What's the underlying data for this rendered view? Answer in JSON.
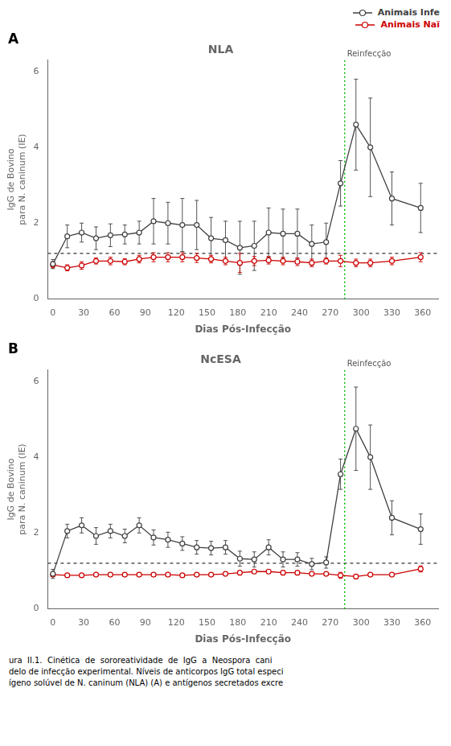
{
  "chart_data": [
    {
      "type": "line",
      "title": "NLA",
      "panel_label": "A",
      "xlabel": "Dias Pós-Infecção",
      "ylabel": "IgG de Bovino\npara N. caninum (IE)",
      "xlim": [
        -5,
        375
      ],
      "xticks": [
        0,
        30,
        60,
        90,
        120,
        150,
        180,
        210,
        240,
        270,
        300,
        330,
        360
      ],
      "ylim": [
        0,
        6.3
      ],
      "yticks": [
        0,
        2,
        4,
        6
      ],
      "grid": false,
      "legend": "upper right",
      "series": [
        {
          "name": "Animais Infe",
          "color": "#404040",
          "marker": "circle",
          "line_style": "solid",
          "x": [
            0,
            14,
            28,
            42,
            56,
            70,
            84,
            98,
            112,
            126,
            140,
            154,
            168,
            182,
            196,
            210,
            224,
            238,
            252,
            266,
            280,
            295,
            309,
            330,
            358
          ],
          "values": [
            0.92,
            1.65,
            1.75,
            1.6,
            1.68,
            1.7,
            1.75,
            2.05,
            2.0,
            1.95,
            1.95,
            1.6,
            1.55,
            1.35,
            1.4,
            1.75,
            1.72,
            1.72,
            1.45,
            1.5,
            3.05,
            4.6,
            4.0,
            2.65,
            2.4
          ],
          "errors": [
            0.12,
            0.3,
            0.25,
            0.3,
            0.3,
            0.25,
            0.3,
            0.6,
            0.55,
            0.7,
            0.65,
            0.55,
            0.5,
            0.7,
            0.65,
            0.65,
            0.65,
            0.65,
            0.5,
            0.5,
            0.6,
            1.2,
            1.3,
            0.7,
            0.65
          ]
        },
        {
          "name": "Animais Naï",
          "color": "#cc0000",
          "marker": "circle",
          "line_style": "solid",
          "x": [
            0,
            14,
            28,
            42,
            56,
            70,
            84,
            98,
            112,
            126,
            140,
            154,
            168,
            182,
            196,
            210,
            224,
            238,
            252,
            266,
            280,
            295,
            309,
            330,
            358
          ],
          "values": [
            0.9,
            0.82,
            0.88,
            1.0,
            1.0,
            0.98,
            1.05,
            1.1,
            1.1,
            1.1,
            1.08,
            1.05,
            1.0,
            0.95,
            1.0,
            1.02,
            1.0,
            0.98,
            0.95,
            1.0,
            1.0,
            0.95,
            0.95,
            1.0,
            1.1
          ],
          "errors": [
            0.08,
            0.08,
            0.1,
            0.08,
            0.1,
            0.08,
            0.1,
            0.12,
            0.12,
            0.12,
            0.12,
            0.1,
            0.1,
            0.25,
            0.12,
            0.1,
            0.1,
            0.1,
            0.1,
            0.08,
            0.15,
            0.1,
            0.1,
            0.1,
            0.12
          ]
        }
      ],
      "annotations": [
        {
          "type": "hline",
          "y": 1.2,
          "color": "#000000",
          "line_style": "dashed"
        },
        {
          "type": "vline",
          "x": 284,
          "label": "Reinfecção",
          "color": "#00bb00",
          "line_style": "dotted"
        }
      ]
    },
    {
      "type": "line",
      "title": "NcESA",
      "panel_label": "B",
      "xlabel": "Dias Pós-Infecção",
      "ylabel": "IgG de Bovino\npara N. caninum (IE)",
      "xlim": [
        -5,
        375
      ],
      "xticks": [
        0,
        30,
        60,
        90,
        120,
        150,
        180,
        210,
        240,
        270,
        300,
        330,
        360
      ],
      "ylim": [
        0,
        6.3
      ],
      "yticks": [
        0,
        2,
        4,
        6
      ],
      "grid": false,
      "series": [
        {
          "name": "Animais Infe",
          "color": "#404040",
          "marker": "circle",
          "line_style": "solid",
          "x": [
            0,
            14,
            28,
            42,
            56,
            70,
            84,
            98,
            112,
            126,
            140,
            154,
            168,
            182,
            196,
            210,
            224,
            238,
            252,
            266,
            280,
            295,
            309,
            330,
            358
          ],
          "values": [
            0.92,
            2.05,
            2.2,
            1.92,
            2.05,
            1.92,
            2.2,
            1.88,
            1.82,
            1.72,
            1.62,
            1.6,
            1.62,
            1.32,
            1.3,
            1.62,
            1.3,
            1.3,
            1.18,
            1.22,
            3.55,
            4.75,
            4.0,
            2.4,
            2.1
          ],
          "errors": [
            0.12,
            0.18,
            0.2,
            0.22,
            0.18,
            0.18,
            0.2,
            0.2,
            0.2,
            0.18,
            0.18,
            0.18,
            0.18,
            0.2,
            0.2,
            0.2,
            0.2,
            0.18,
            0.15,
            0.15,
            0.4,
            1.1,
            0.85,
            0.45,
            0.4
          ]
        },
        {
          "name": "Animais Naï",
          "color": "#cc0000",
          "marker": "circle",
          "line_style": "solid",
          "x": [
            0,
            14,
            28,
            42,
            56,
            70,
            84,
            98,
            112,
            126,
            140,
            154,
            168,
            182,
            196,
            210,
            224,
            238,
            252,
            266,
            280,
            295,
            309,
            330,
            358
          ],
          "values": [
            0.9,
            0.88,
            0.88,
            0.9,
            0.9,
            0.9,
            0.9,
            0.9,
            0.9,
            0.88,
            0.9,
            0.9,
            0.92,
            0.95,
            0.98,
            0.98,
            0.95,
            0.95,
            0.92,
            0.92,
            0.88,
            0.85,
            0.9,
            0.9,
            1.05
          ],
          "errors": [
            0.05,
            0.05,
            0.05,
            0.05,
            0.05,
            0.05,
            0.05,
            0.05,
            0.05,
            0.05,
            0.05,
            0.05,
            0.05,
            0.05,
            0.05,
            0.05,
            0.05,
            0.05,
            0.05,
            0.05,
            0.08,
            0.05,
            0.05,
            0.05,
            0.08
          ]
        }
      ],
      "annotations": [
        {
          "type": "hline",
          "y": 1.2,
          "color": "#000000",
          "line_style": "dashed"
        },
        {
          "type": "vline",
          "x": 284,
          "label": "Reinfecção",
          "color": "#00bb00",
          "line_style": "dotted"
        }
      ],
      "caption": "ura  II.1.  Cinética  de  sororeatividade  de  IgG  a  Neospora  cani\ndelo de infecção experimental. Níveis de anticorpos IgG total especi\nígeno solúvel de N. caninum (NLA) (A) e antígenos secretados excre"
    }
  ]
}
